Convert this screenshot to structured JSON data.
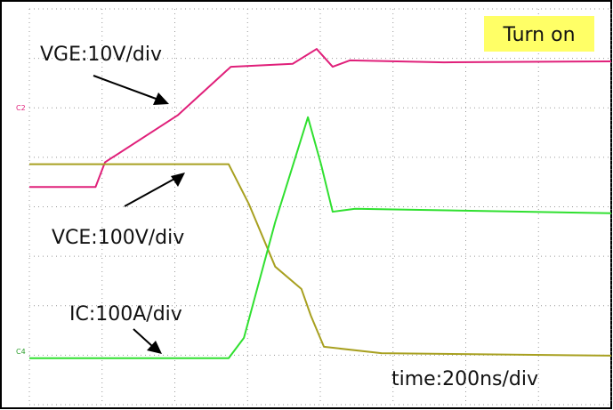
{
  "chart_data": {
    "type": "line",
    "xlim": [
      0,
      8
    ],
    "ylim": [
      0,
      8
    ],
    "xticks": [
      0,
      1,
      2,
      3,
      4,
      5,
      6,
      7,
      8
    ],
    "yticks": [
      0,
      1,
      2,
      3,
      4,
      5,
      6,
      7,
      8
    ],
    "grid": true,
    "series": [
      {
        "name": "VGE:10V/div",
        "color": "#e0207a",
        "x": [
          0,
          0.91,
          1.04,
          2.04,
          2.77,
          3.62,
          3.95,
          4.17,
          4.41,
          5.7,
          8
        ],
        "values": [
          4.4,
          4.4,
          4.9,
          5.85,
          6.83,
          6.89,
          7.19,
          6.83,
          6.96,
          6.92,
          6.94
        ]
      },
      {
        "name": "VCE:100V/div",
        "color": "#a8a020",
        "x": [
          0,
          2.74,
          3.02,
          3.38,
          3.74,
          3.87,
          4.05,
          4.84,
          8
        ],
        "values": [
          4.86,
          4.86,
          4.05,
          2.79,
          2.34,
          1.8,
          1.17,
          1.04,
          0.99
        ]
      },
      {
        "name": "IC:100A/div",
        "color": "#30e030",
        "x": [
          0,
          2.74,
          2.95,
          3.38,
          3.83,
          4.01,
          4.17,
          4.48,
          8
        ],
        "values": [
          0.94,
          0.94,
          1.35,
          3.69,
          5.81,
          4.86,
          3.9,
          3.96,
          3.87
        ]
      }
    ],
    "annotations": {
      "badge": "Turn on",
      "timebase": "time:200ns/div",
      "ch2": "C2",
      "ch4": "C4"
    }
  }
}
